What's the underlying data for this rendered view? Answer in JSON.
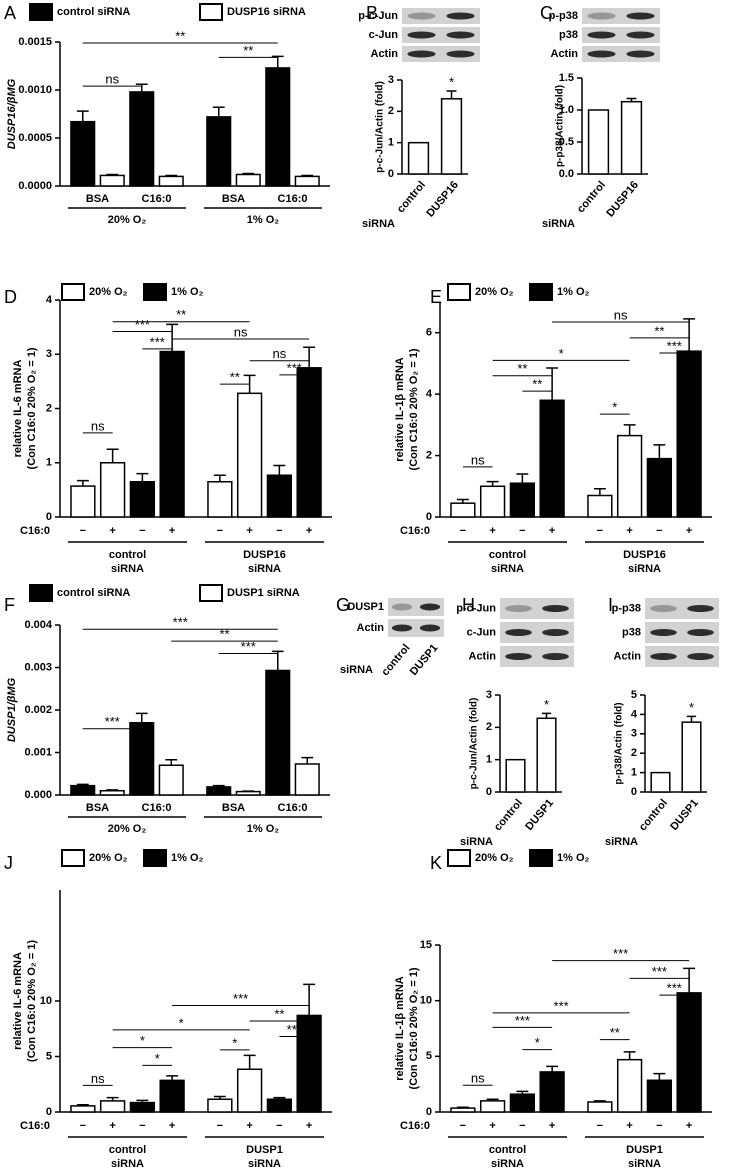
{
  "chart_data": [
    {
      "type": "grouped_bar",
      "label": "A",
      "ylabel": "DUSP16/βMG",
      "categories": [
        "BSA",
        "C16:0",
        "BSA",
        "C16:0"
      ],
      "groups": [
        "20% O₂",
        "1% O₂"
      ],
      "series": [
        {
          "name": "control siRNA",
          "color": "#000000",
          "values": [
            0.00067,
            0.00098,
            0.00072,
            0.00123
          ],
          "errors": [
            0.00011,
            8e-05,
            0.0001,
            0.00012
          ]
        },
        {
          "name": "DUSP16 siRNA",
          "color": "#ffffff",
          "values": [
            0.00011,
            0.0001,
            0.00012,
            0.0001
          ],
          "errors": [
            1e-05,
            1e-05,
            1e-05,
            1e-05
          ]
        }
      ],
      "ylim": [
        0,
        0.0015
      ],
      "yticks": [
        {
          "value": 0,
          "label": "0.0000"
        },
        0.0005,
        {
          "value": 0.001,
          "label": "0.0010"
        },
        0.0015
      ],
      "annotations": [
        "**",
        "**",
        "ns"
      ]
    },
    {
      "type": "bar",
      "label": "B",
      "ylabel": "p-c-Jun/Actin (fold)",
      "xlabel": "siRNA",
      "blots": [
        "p-c-Jun",
        "c-Jun",
        "Actin"
      ],
      "categories": [
        "control",
        "DUSP16"
      ],
      "values": [
        1,
        2.4
      ],
      "errors": [
        null,
        0.25
      ],
      "color": "#ffffff",
      "ylim": [
        0,
        3
      ],
      "yticks": [
        0,
        1,
        2,
        3
      ],
      "annotations": [
        "*"
      ]
    },
    {
      "type": "bar",
      "label": "C",
      "ylabel": "p-p38/Actin (fold)",
      "xlabel": "siRNA",
      "blots": [
        "p-p38",
        "p38",
        "Actin"
      ],
      "categories": [
        "control",
        "DUSP16"
      ],
      "values": [
        1,
        1.13
      ],
      "errors": [
        null,
        0.05
      ],
      "color": "#ffffff",
      "ylim": [
        0,
        1.5
      ],
      "yticks": [
        {
          "value": 0,
          "label": "0.0"
        },
        0.5,
        {
          "value": 1,
          "label": "1.0"
        },
        1.5
      ]
    },
    {
      "type": "bar",
      "label": "D",
      "ylabel": [
        "relative IL-6 mRNA",
        "(Con C16:0 20% O₂ = 1)"
      ],
      "xrow_label": "C16:0",
      "categories": [
        "−",
        "+",
        "−",
        "+",
        "−",
        "+",
        "−",
        "+"
      ],
      "groups": [
        [
          "control",
          "siRNA"
        ],
        [
          "DUSP16",
          "siRNA"
        ]
      ],
      "series": [
        {
          "name": "20% O₂",
          "color": "#ffffff",
          "values": [
            0.57,
            1.0,
            null,
            null,
            0.65,
            2.28,
            null,
            null
          ],
          "errors": [
            0.1,
            0.25,
            null,
            null,
            0.12,
            0.33,
            null,
            null
          ]
        },
        {
          "name": "1% O₂",
          "color": "#000000",
          "values": [
            null,
            null,
            0.65,
            3.05,
            null,
            null,
            0.77,
            2.75
          ],
          "errors": [
            null,
            null,
            0.15,
            0.5,
            null,
            null,
            0.18,
            0.38
          ]
        }
      ],
      "ylim": [
        0,
        4
      ],
      "yticks": [
        0,
        1,
        2,
        3,
        4
      ],
      "annotations": [
        "**",
        "***",
        "ns",
        "***",
        "ns",
        "***",
        "**",
        "ns"
      ]
    },
    {
      "type": "bar",
      "label": "E",
      "ylabel": [
        "relative IL-1β mRNA",
        "(Con C16:0 20% O₂ = 1)"
      ],
      "xrow_label": "C16:0",
      "categories": [
        "−",
        "+",
        "−",
        "+",
        "−",
        "+",
        "−",
        "+"
      ],
      "groups": [
        [
          "control",
          "siRNA"
        ],
        [
          "DUSP16",
          "siRNA"
        ]
      ],
      "series": [
        {
          "name": "20% O₂",
          "color": "#ffffff",
          "values": [
            0.45,
            1.0,
            null,
            null,
            0.7,
            2.65,
            null,
            null
          ],
          "errors": [
            0.12,
            0.15,
            null,
            null,
            0.22,
            0.35,
            null,
            null
          ]
        },
        {
          "name": "1% O₂",
          "color": "#000000",
          "values": [
            null,
            null,
            1.1,
            3.8,
            null,
            null,
            1.9,
            5.4
          ],
          "errors": [
            null,
            null,
            0.3,
            1.05,
            null,
            null,
            0.45,
            1.05
          ]
        }
      ],
      "ylim": [
        0,
        7
      ],
      "yticks": [
        0,
        2,
        4,
        6
      ],
      "annotations": [
        "ns",
        "**",
        "***",
        "*",
        "**",
        "**",
        "*",
        "ns"
      ]
    },
    {
      "type": "grouped_bar",
      "label": "F",
      "ylabel": "DUSP1/βMG",
      "categories": [
        "BSA",
        "C16:0",
        "BSA",
        "C16:0"
      ],
      "groups": [
        "20% O₂",
        "1% O₂"
      ],
      "series": [
        {
          "name": "control siRNA",
          "color": "#000000",
          "values": [
            0.00022,
            0.0017,
            0.00019,
            0.00293
          ],
          "errors": [
            3e-05,
            0.00022,
            3e-05,
            0.00045
          ]
        },
        {
          "name": "DUSP1 siRNA",
          "color": "#ffffff",
          "values": [
            0.0001,
            0.0007,
            8e-05,
            0.00073
          ],
          "errors": [
            2e-05,
            0.00013,
            1e-05,
            0.00015
          ]
        }
      ],
      "ylim": [
        0,
        0.004
      ],
      "yticks": [
        {
          "value": 0,
          "label": "0.000"
        },
        0.001,
        0.002,
        0.003,
        0.004
      ],
      "annotations": [
        "***",
        "**",
        "***",
        "***"
      ]
    },
    {
      "type": "blot",
      "label": "G",
      "xlabel": "siRNA",
      "blots": [
        "DUSP1",
        "Actin"
      ],
      "categories": [
        "control",
        "DUSP1"
      ]
    },
    {
      "type": "bar",
      "label": "H",
      "ylabel": "p-c-Jun/Actin (fold)",
      "xlabel": "siRNA",
      "blots": [
        "p-c-Jun",
        "c-Jun",
        "Actin"
      ],
      "categories": [
        "control",
        "DUSP1"
      ],
      "values": [
        1,
        2.28
      ],
      "errors": [
        null,
        0.15
      ],
      "color": "#ffffff",
      "ylim": [
        0,
        3
      ],
      "yticks": [
        0,
        1,
        2,
        3
      ],
      "annotations": [
        "*"
      ]
    },
    {
      "type": "bar",
      "label": "I",
      "ylabel": "p-p38/Actin (fold)",
      "xlabel": "siRNA",
      "blots": [
        "p-p38",
        "p38",
        "Actin"
      ],
      "categories": [
        "control",
        "DUSP1"
      ],
      "values": [
        1,
        3.6
      ],
      "errors": [
        null,
        0.3
      ],
      "color": "#ffffff",
      "ylim": [
        0,
        5
      ],
      "yticks": [
        0,
        1,
        2,
        3,
        4,
        5
      ],
      "annotations": [
        "*"
      ]
    },
    {
      "type": "bar",
      "label": "J",
      "ylabel": [
        "relative IL-6 mRNA",
        "(Con C16:0 20% O₂ = 1)"
      ],
      "xrow_label": "C16:0",
      "categories": [
        "−",
        "+",
        "−",
        "+",
        "−",
        "+",
        "−",
        "+"
      ],
      "groups": [
        [
          "control",
          "siRNA"
        ],
        [
          "DUSP1",
          "siRNA"
        ]
      ],
      "series": [
        {
          "name": "20% O₂",
          "color": "#ffffff",
          "values": [
            0.55,
            1.0,
            null,
            null,
            1.15,
            3.85,
            null,
            null
          ],
          "errors": [
            0.1,
            0.3,
            null,
            null,
            0.25,
            1.25,
            null,
            null
          ]
        },
        {
          "name": "1% O₂",
          "color": "#000000",
          "values": [
            null,
            null,
            0.85,
            2.85,
            null,
            null,
            1.15,
            8.7
          ],
          "errors": [
            null,
            null,
            0.2,
            0.4,
            null,
            null,
            0.15,
            2.8
          ]
        }
      ],
      "ylim": [
        0,
        20
      ],
      "yticks": [
        0,
        5,
        10
      ],
      "annotations": [
        "***",
        "**",
        "***",
        "*",
        "*",
        "*",
        "*",
        "ns"
      ]
    },
    {
      "type": "bar",
      "label": "K",
      "ylabel": [
        "relative IL-1β mRNA",
        "(Con C16:0 20% O₂ = 1)"
      ],
      "xrow_label": "C16:0",
      "categories": [
        "−",
        "+",
        "−",
        "+",
        "−",
        "+",
        "−",
        "+"
      ],
      "groups": [
        [
          "control",
          "siRNA"
        ],
        [
          "DUSP1",
          "siRNA"
        ]
      ],
      "series": [
        {
          "name": "20% O₂",
          "color": "#ffffff",
          "values": [
            0.35,
            1.0,
            null,
            null,
            0.9,
            4.7,
            null,
            null
          ],
          "errors": [
            0.08,
            0.15,
            null,
            null,
            0.1,
            0.7,
            null,
            null
          ]
        },
        {
          "name": "1% O₂",
          "color": "#000000",
          "values": [
            null,
            null,
            1.6,
            3.6,
            null,
            null,
            2.85,
            10.7
          ],
          "errors": [
            null,
            null,
            0.25,
            0.5,
            null,
            null,
            0.6,
            2.2
          ]
        }
      ],
      "ylim": [
        0,
        15
      ],
      "yticks": [
        0,
        5,
        10,
        15
      ],
      "annotations": [
        "***",
        "***",
        "***",
        "***",
        "***",
        "*",
        "**",
        "ns"
      ]
    }
  ]
}
